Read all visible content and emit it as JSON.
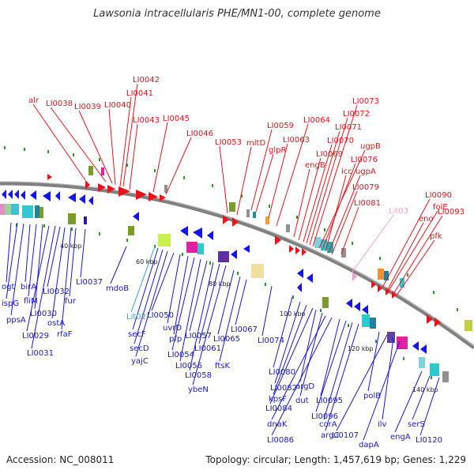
{
  "title": "Lawsonia intracellularis PHE/MN1-00, complete genome",
  "accession": "Accession: NC_008011",
  "topology": "Topology: circular; Length: 1,457,619 bp; Genes: 1,229",
  "colors": {
    "forward": "#e8141c",
    "reverse": "#1515e6",
    "rna": "#7dd3e8",
    "pseudo": "#f0a0d0",
    "backbone": "#808080"
  },
  "scale_labels": [
    "40 kbp",
    "60 kbp",
    "80 kbp",
    "100 kbp",
    "120 kbp",
    "140 kbp"
  ],
  "forward_labels": [
    "alr",
    "LI0038",
    "LI0039",
    "LI0040",
    "LI0041",
    "LI0042",
    "LI0043",
    "LI0045",
    "LI0046",
    "LI0053",
    "mltD",
    "LI0059",
    "glpR",
    "LI0063",
    "LI0064",
    "engB",
    "LI0069",
    "LI0070",
    "LI0071",
    "LI0072",
    "LI0073",
    "ugpB",
    "LI0076",
    "icc",
    "ugpA",
    "LI0079",
    "LI0081",
    "Lit03",
    "LI0090",
    "folE",
    "LI0093",
    "eno",
    "pfk"
  ],
  "reverse_labels": [
    "ogt",
    "ispG",
    "ppsA",
    "birA",
    "fliM",
    "LI0030",
    "LI0029",
    "LI0031",
    "LI0032",
    "ostA",
    "rfaF",
    "fur",
    "LI0037",
    "mdoB",
    "Lit02",
    "secF",
    "secD",
    "yajC",
    "LI0050",
    "uvrD",
    "pfp",
    "LI0054",
    "LI0056",
    "LI0057",
    "LI0058",
    "LI0061",
    "ybeN",
    "ftsK",
    "LI0065",
    "LI0067",
    "LI0074",
    "LI0080",
    "LI0082",
    "kpsF",
    "LI0084",
    "argD",
    "dut",
    "dnaK",
    "LI0086",
    "LI0095",
    "LI0096",
    "corA",
    "argC",
    "polB",
    "LI0107",
    "ilv",
    "dapA",
    "engA",
    "serS",
    "LI0120"
  ]
}
